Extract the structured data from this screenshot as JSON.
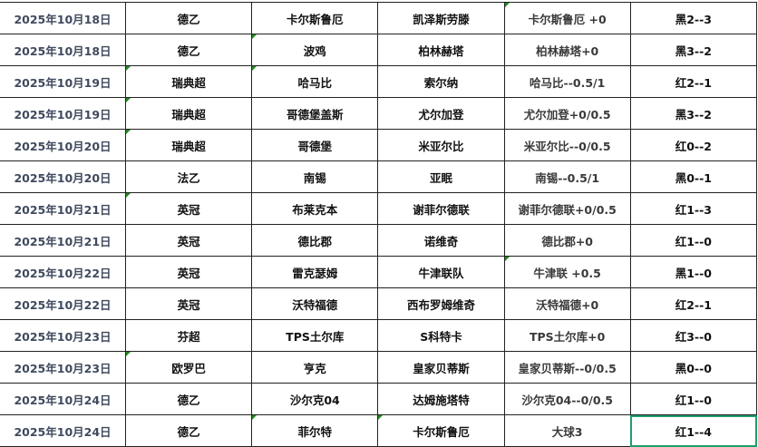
{
  "accent_color": "#1e9e6a",
  "rows": [
    {
      "date": "2025年10月18日",
      "league": "德乙",
      "home": "卡尔斯鲁厄",
      "away": "凯泽斯劳滕",
      "handicap": "卡尔斯鲁厄 +0",
      "result": "黑2--3",
      "marks": [
        4
      ]
    },
    {
      "date": "2025年10月18日",
      "league": "德乙",
      "home": "波鸡",
      "away": "柏林赫塔",
      "handicap": "柏林赫塔+0",
      "result": "黑3--2",
      "marks": [
        2
      ]
    },
    {
      "date": "2025年10月19日",
      "league": "瑞典超",
      "home": "哈马比",
      "away": "索尔纳",
      "handicap": "哈马比--0.5/1",
      "result": "红2--1",
      "marks": [
        1,
        2
      ]
    },
    {
      "date": "2025年10月19日",
      "league": "瑞典超",
      "home": "哥德堡盖斯",
      "away": "尤尔加登",
      "handicap": "尤尔加登+0/0.5",
      "result": "黑3--2",
      "marks": [
        1
      ]
    },
    {
      "date": "2025年10月20日",
      "league": "瑞典超",
      "home": "哥德堡",
      "away": "米亚尔比",
      "handicap": "米亚尔比--0/0.5",
      "result": "红0--2",
      "marks": [
        1
      ]
    },
    {
      "date": "2025年10月20日",
      "league": "法乙",
      "home": "南锡",
      "away": "亚眠",
      "handicap": "南锡--0.5/1",
      "result": "黑0--1",
      "marks": []
    },
    {
      "date": "2025年10月21日",
      "league": "英冠",
      "home": "布莱克本",
      "away": "谢菲尔德联",
      "handicap": "谢菲尔德联+0/0.5",
      "result": "红1--3",
      "marks": [
        1
      ]
    },
    {
      "date": "2025年10月21日",
      "league": "英冠",
      "home": "德比郡",
      "away": "诺维奇",
      "handicap": "德比郡+0",
      "result": "红1--0",
      "marks": []
    },
    {
      "date": "2025年10月22日",
      "league": "英冠",
      "home": "雷克瑟姆",
      "away": "牛津联队",
      "handicap": "牛津联  +0.5",
      "result": "黑1--0",
      "marks": [
        4
      ]
    },
    {
      "date": "2025年10月22日",
      "league": "英冠",
      "home": "沃特福德",
      "away": "西布罗姆维奇",
      "handicap": "沃特福德+0",
      "result": "红2--1",
      "marks": []
    },
    {
      "date": "2025年10月23日",
      "league": "芬超",
      "home": "TPS土尔库",
      "away": "S科特卡",
      "handicap": "TPS土尔库+0",
      "result": "红3--0",
      "marks": []
    },
    {
      "date": "2025年10月23日",
      "league": "欧罗巴",
      "home": "亨克",
      "away": "皇家贝蒂斯",
      "handicap": "皇家贝蒂斯--0/0.5",
      "result": "黑0--0",
      "marks": [
        1
      ]
    },
    {
      "date": "2025年10月24日",
      "league": "德乙",
      "home": "沙尔克04",
      "away": "达姆施塔特",
      "handicap": "沙尔克04--0/0.5",
      "result": "红1--0",
      "marks": []
    },
    {
      "date": "2025年10月24日",
      "league": "德乙",
      "home": "菲尔特",
      "away": "卡尔斯鲁厄",
      "handicap": "大球3",
      "result": "红1--4",
      "marks": [
        2,
        3
      ],
      "selected": true
    }
  ]
}
